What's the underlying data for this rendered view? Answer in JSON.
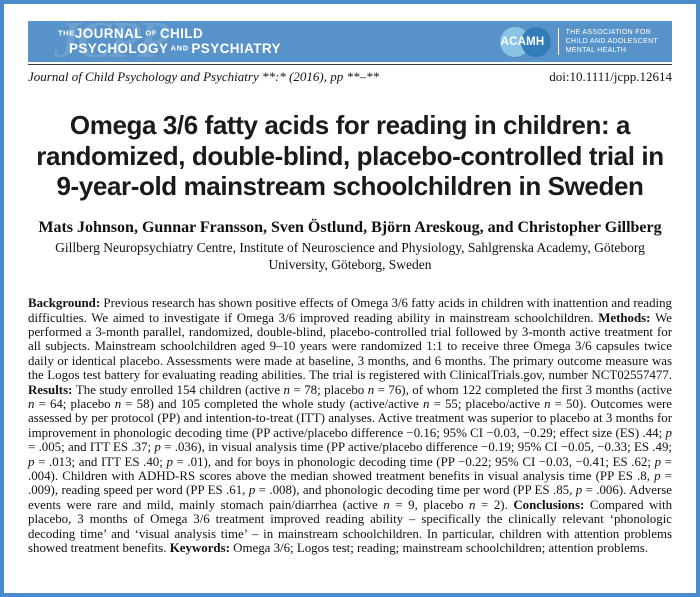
{
  "page": {
    "border_color": "#4a8ccb",
    "banner_color": "#5792c8"
  },
  "banner": {
    "watermark": "JCPP",
    "journal_logo": {
      "line1": [
        {
          "s": 1,
          "t": "THE"
        },
        {
          "t": "JOURNAL"
        },
        {
          "s": 1,
          "t": " OF "
        },
        {
          "t": "CHILD"
        }
      ],
      "line2": [
        {
          "t": "PSYCHOLOGY"
        },
        {
          "s": 1,
          "t": " AND "
        },
        {
          "t": "PSYCHIATRY"
        }
      ]
    },
    "acamh": {
      "abbr": "ACAMH",
      "line1": "THE ASSOCIATION FOR",
      "line2": "CHILD AND ADOLESCENT",
      "line3": "MENTAL HEALTH",
      "circle_left_color": "#8bc3e4",
      "circle_right_color": "#2f7cb6"
    }
  },
  "citation": {
    "journal_line": "Journal of Child Psychology and Psychiatry **:* (2016), pp **–**",
    "doi": "doi:10.1111/jcpp.12614"
  },
  "article": {
    "title_lines": [
      "Omega 3/6 fatty acids for reading in children: a",
      "randomized, double-blind, placebo-controlled trial in",
      "9-year-old mainstream schoolchildren in Sweden"
    ],
    "authors": "Mats Johnson, Gunnar Fransson, Sven Östlund, Björn Areskoug, and Christopher Gillberg",
    "affiliation_lines": [
      "Gillberg Neuropsychiatry Centre, Institute of Neuroscience and Physiology, Sahlgrenska Academy, Göteborg",
      "University, Göteborg, Sweden"
    ],
    "abstract": [
      {
        "b": 1,
        "t": "Background: "
      },
      {
        "t": "Previous research has shown positive effects of Omega 3/6 fatty acids in children with inattention and reading difficulties. We aimed to investigate if Omega 3/6 improved reading ability in mainstream schoolchildren. "
      },
      {
        "b": 1,
        "t": "Methods: "
      },
      {
        "t": "We performed a 3-month parallel, randomized, double-blind, placebo-controlled trial followed by 3-month active treatment for all subjects. Mainstream schoolchildren aged 9–10 years were randomized 1:1 to receive three Omega 3/6 capsules twice daily or identical placebo. Assessments were made at baseline, 3 months, and 6 months. The primary outcome measure was the Logos test battery for evaluating reading abilities. The trial is registered with ClinicalTrials.gov, number NCT02557477. "
      },
      {
        "b": 1,
        "t": "Results: "
      },
      {
        "t": "The study enrolled 154 children (active "
      },
      {
        "i": 1,
        "t": "n"
      },
      {
        "t": " = 78; placebo "
      },
      {
        "i": 1,
        "t": "n"
      },
      {
        "t": " = 76), of whom 122 completed the first 3 months (active "
      },
      {
        "i": 1,
        "t": "n"
      },
      {
        "t": " = 64; placebo "
      },
      {
        "i": 1,
        "t": "n"
      },
      {
        "t": " = 58) and 105 completed the whole study (active/active "
      },
      {
        "i": 1,
        "t": "n"
      },
      {
        "t": " = 55; placebo/active "
      },
      {
        "i": 1,
        "t": "n"
      },
      {
        "t": " = 50). Outcomes were assessed by per protocol (PP) and intention-to-treat (ITT) analyses. Active treatment was superior to placebo at 3 months for improvement in phonologic decoding time (PP active/placebo difference −0.16; 95% CI −0.03, −0.29; effect size (ES) .44; "
      },
      {
        "i": 1,
        "t": "p"
      },
      {
        "t": " = .005; and ITT ES .37; "
      },
      {
        "i": 1,
        "t": "p"
      },
      {
        "t": " = .036), in visual analysis time (PP active/placebo difference −0.19; 95% CI −0.05, −0.33; ES .49; "
      },
      {
        "i": 1,
        "t": "p"
      },
      {
        "t": " = .013; and ITT ES .40; "
      },
      {
        "i": 1,
        "t": "p"
      },
      {
        "t": " = .01), and for boys in phonologic decoding time (PP −0.22; 95% CI −0.03, −0.41; ES .62; "
      },
      {
        "i": 1,
        "t": "p"
      },
      {
        "t": " = .004). Children with ADHD-RS scores above the median showed treatment benefits in visual analysis time (PP ES .8, "
      },
      {
        "i": 1,
        "t": "p"
      },
      {
        "t": " = .009), reading speed per word (PP ES .61, "
      },
      {
        "i": 1,
        "t": "p"
      },
      {
        "t": " = .008), and phonologic decoding time per word (PP ES .85, "
      },
      {
        "i": 1,
        "t": "p"
      },
      {
        "t": " = .006). Adverse events were rare and mild, mainly stomach pain/diarrhea (active "
      },
      {
        "i": 1,
        "t": "n"
      },
      {
        "t": " = 9, placebo "
      },
      {
        "i": 1,
        "t": "n"
      },
      {
        "t": " = 2). "
      },
      {
        "b": 1,
        "t": "Conclusions: "
      },
      {
        "t": "Compared with placebo, 3 months of Omega 3/6 treatment improved reading ability – specifically the clinically relevant ‘phonologic decoding time’ and ‘visual analysis time’ – in mainstream schoolchildren. In particular, children with attention problems showed treatment benefits. "
      },
      {
        "b": 1,
        "t": "Keywords: "
      },
      {
        "t": "Omega 3/6; Logos test; reading; mainstream schoolchildren; attention problems."
      }
    ]
  }
}
